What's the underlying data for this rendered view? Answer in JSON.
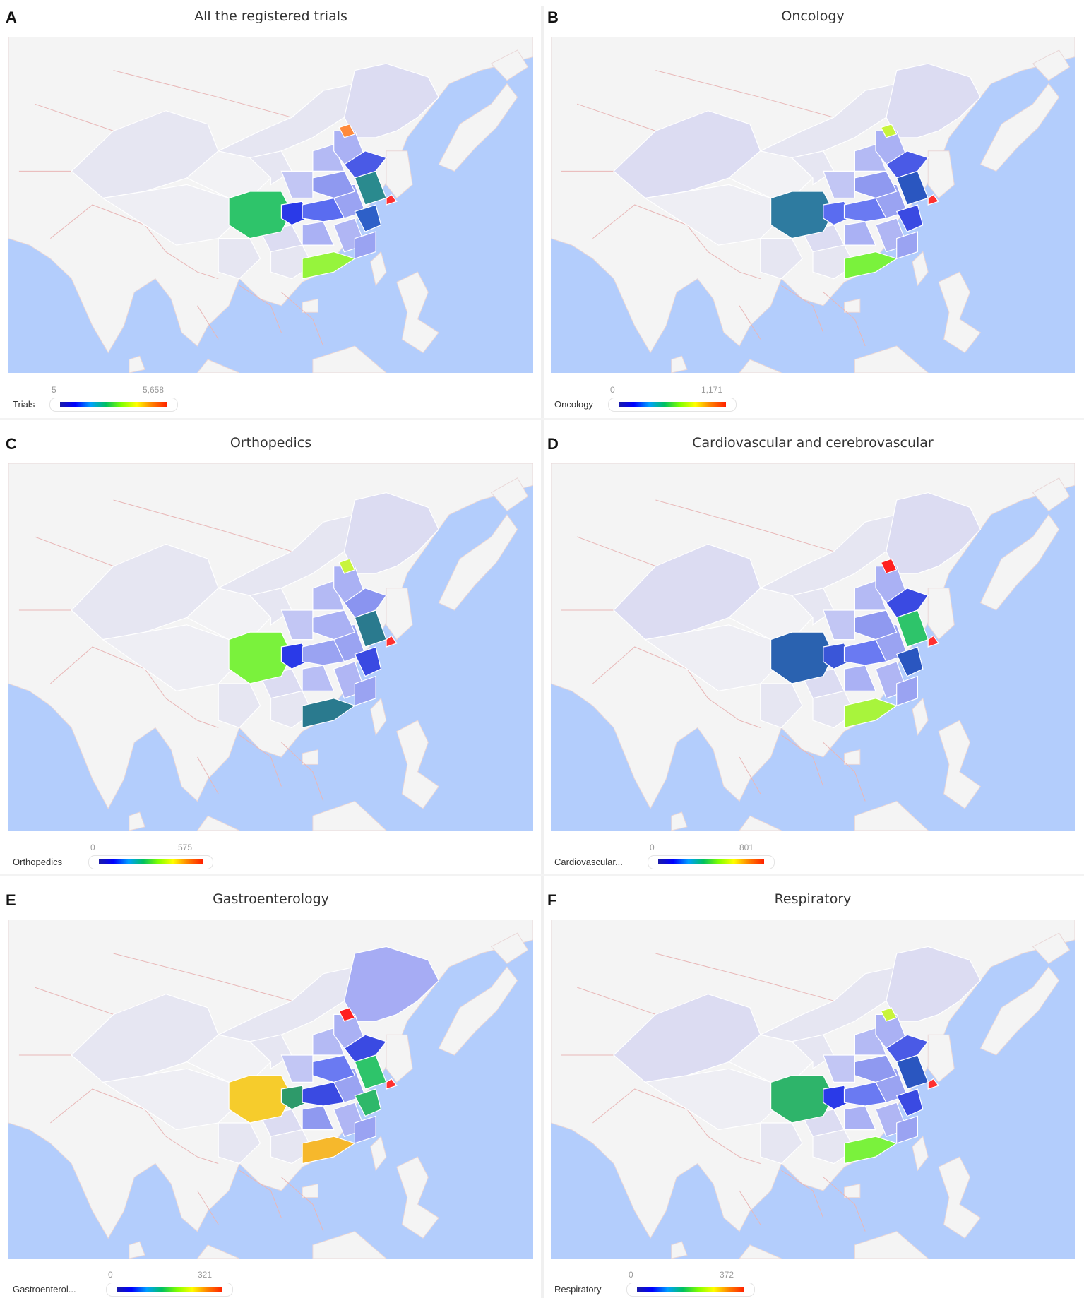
{
  "panels": [
    {
      "letter": "A",
      "title": "All the registered trials",
      "legend": {
        "label": "Trials",
        "min": "5",
        "max": "5,658"
      },
      "colors": {
        "sichuan": "#2ec46a",
        "chongqing": "#2a3ae8",
        "hubei": "#5a6cf0",
        "shandong": "#4a5ae6",
        "jiangsu": "#2a8a8e",
        "zhejiang": "#2e60c8",
        "guangdong": "#96f43c",
        "beijing": "#ff8a3c",
        "shanghai": "#ff3030",
        "henan": "#8f99f0",
        "hunan": "#aab1f4"
      }
    },
    {
      "letter": "B",
      "title": "Oncology",
      "legend": {
        "label": "Oncology",
        "min": "0",
        "max": "1,171"
      },
      "colors": {
        "sichuan": "#2e7ba0",
        "chongqing": "#5a6cf0",
        "hubei": "#6a7af2",
        "shandong": "#4a5ae6",
        "jiangsu": "#2a56c0",
        "zhejiang": "#3a4ae2",
        "guangdong": "#7af23c",
        "beijing": "#c8f43c",
        "shanghai": "#ff3030",
        "henan": "#8f99f0",
        "hunan": "#aab1f4"
      }
    },
    {
      "letter": "C",
      "title": "Orthopedics",
      "legend": {
        "label": "Orthopedics",
        "min": "0",
        "max": "575"
      },
      "colors": {
        "sichuan": "#7af23c",
        "chongqing": "#2a3ae8",
        "hubei": "#9aa3f2",
        "shandong": "#8a94f0",
        "jiangsu": "#2a7a8e",
        "zhejiang": "#3a4ae2",
        "guangdong": "#2a7a8e",
        "beijing": "#c8f43c",
        "shanghai": "#ff3030",
        "henan": "#aab1f4",
        "hunan": "#b8bef5"
      }
    },
    {
      "letter": "D",
      "title": "Cardiovascular and cerebrovascular",
      "legend": {
        "label": "Cardiovascular...",
        "min": "0",
        "max": "801"
      },
      "colors": {
        "sichuan": "#2a62b0",
        "chongqing": "#3a56d8",
        "hubei": "#6a7af2",
        "shandong": "#3a4ae2",
        "jiangsu": "#2ec46a",
        "zhejiang": "#2a56c0",
        "guangdong": "#a8f43c",
        "beijing": "#ff2020",
        "shanghai": "#ff3030",
        "henan": "#8f99f0",
        "hunan": "#aab1f4"
      }
    },
    {
      "letter": "E",
      "title": "Gastroenterology",
      "legend": {
        "label": "Gastroenterol...",
        "min": "0",
        "max": "321"
      },
      "colors": {
        "sichuan": "#f6cc2c",
        "chongqing": "#2e9a6a",
        "hubei": "#3a4ae2",
        "shandong": "#3a4ae2",
        "jiangsu": "#2ec46a",
        "zhejiang": "#2eb86a",
        "guangdong": "#f6b82c",
        "beijing": "#ff2020",
        "shanghai": "#ff3030",
        "henan": "#6a7af2",
        "hunan": "#8f99f0"
      }
    },
    {
      "letter": "F",
      "title": "Respiratory",
      "legend": {
        "label": "Respiratory",
        "min": "0",
        "max": "372"
      },
      "colors": {
        "sichuan": "#2eb46a",
        "chongqing": "#2a3ae8",
        "hubei": "#6a7af2",
        "shandong": "#4a5ae6",
        "jiangsu": "#2a56c0",
        "zhejiang": "#3a4ae2",
        "guangdong": "#7af23c",
        "beijing": "#c8f43c",
        "shanghai": "#ff3030",
        "henan": "#8f99f0",
        "hunan": "#aab1f4"
      }
    }
  ]
}
